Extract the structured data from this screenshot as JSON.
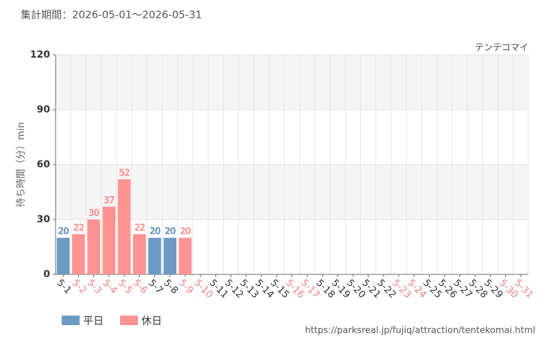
{
  "header": "集計期間：2026-05-01～2026-05-31",
  "chart_data": {
    "type": "bar",
    "subtitle": "テンテコマイ",
    "y_label": "待ち時間（分）min",
    "categories": [
      "5-1",
      "5-2",
      "5-3",
      "5-4",
      "5-5",
      "5-6",
      "5-7",
      "5-8",
      "5-9",
      "5-10",
      "5-11",
      "5-12",
      "5-13",
      "5-14",
      "5-15",
      "5-16",
      "5-17",
      "5-18",
      "5-19",
      "5-20",
      "5-21",
      "5-22",
      "5-23",
      "5-24",
      "5-25",
      "5-26",
      "5-27",
      "5-28",
      "5-29",
      "5-30",
      "5-31"
    ],
    "values": [
      20,
      22,
      30,
      37,
      52,
      22,
      20,
      20,
      20,
      null,
      null,
      null,
      null,
      null,
      null,
      null,
      null,
      null,
      null,
      null,
      null,
      null,
      null,
      null,
      null,
      null,
      null,
      null,
      null,
      null,
      null
    ],
    "holiday": [
      false,
      true,
      true,
      true,
      true,
      true,
      false,
      false,
      true,
      true,
      false,
      false,
      false,
      false,
      false,
      true,
      true,
      false,
      false,
      false,
      false,
      false,
      true,
      true,
      false,
      false,
      false,
      false,
      false,
      true,
      true
    ],
    "legend": [
      {
        "name": "平日",
        "color": "#6b9bc3"
      },
      {
        "name": "休日",
        "color": "#ff9393"
      }
    ],
    "ylim": [
      0,
      120
    ],
    "yticks": [
      0,
      30,
      60,
      90,
      120
    ],
    "grid": true
  },
  "source": "https://parksreal.jp/fujiq/attraction/tentekomai.html"
}
